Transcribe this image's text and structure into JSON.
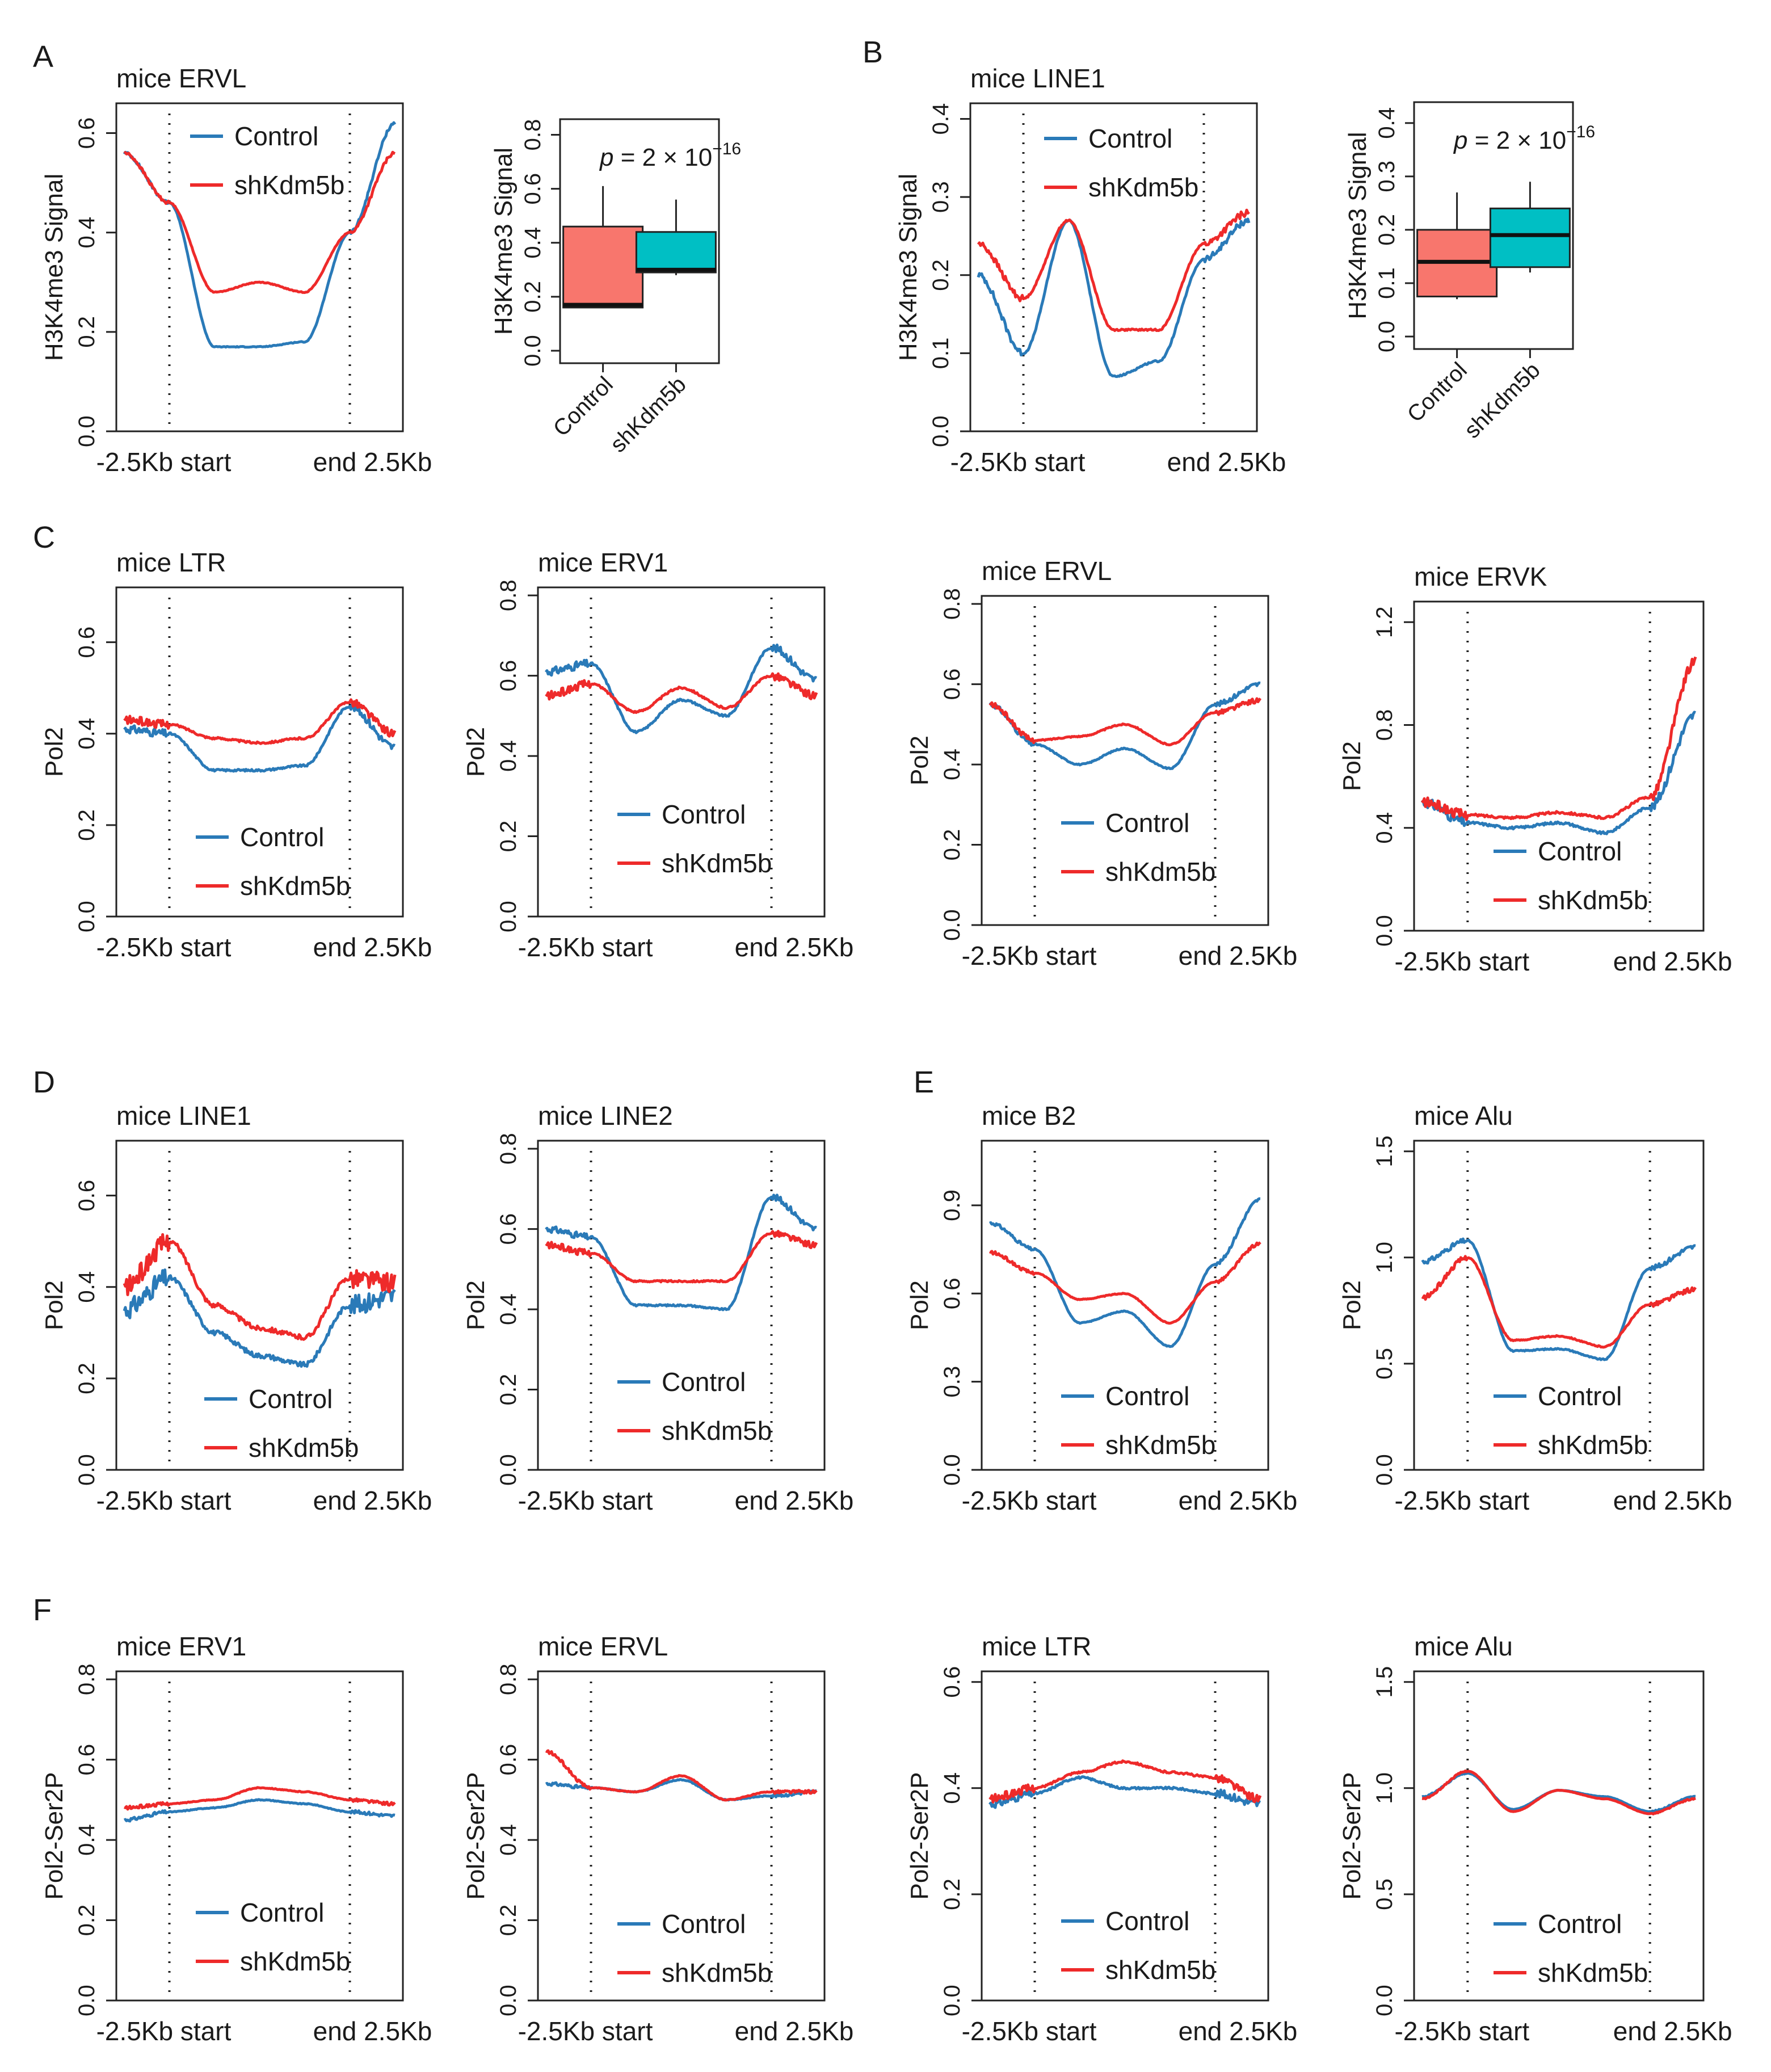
{
  "colors": {
    "control": "#2a7ab8",
    "shKdm5b": "#ee2a2a",
    "box_control": "#f8766d",
    "box_shKdm5b": "#00bfc4"
  },
  "legend": {
    "control": "Control",
    "shKdm5b": "shKdm5b"
  },
  "x_labels": {
    "start": "-2.5Kb start",
    "end": "end 2.5Kb"
  },
  "panels": {
    "A": {
      "letter": "A",
      "title": "mice ERVL",
      "ylabel": "H3K4me3 Signal",
      "yticks": [
        "0.0",
        "0.2",
        "0.4",
        "0.6"
      ],
      "ylim": [
        0,
        0.66
      ]
    },
    "A_box": {
      "ylabel": "H3K4me3 Signal",
      "yticks": [
        "0.0",
        "0.2",
        "0.4",
        "0.6",
        "0.8"
      ],
      "ylim": [
        0,
        0.82
      ],
      "pval": {
        "prefix": "p",
        "text": " = 2 × 10",
        "exp": "−16"
      },
      "categories": [
        "Control",
        "shKdm5b"
      ]
    },
    "B": {
      "letter": "B",
      "title": "mice LINE1",
      "ylabel": "H3K4me3 Signal",
      "yticks": [
        "0.0",
        "0.1",
        "0.2",
        "0.3",
        "0.4"
      ],
      "ylim": [
        0,
        0.42
      ]
    },
    "B_box": {
      "ylabel": "H3K4me3 Signal",
      "yticks": [
        "0.0",
        "0.1",
        "0.2",
        "0.3",
        "0.4"
      ],
      "ylim": [
        0,
        0.42
      ],
      "pval": {
        "prefix": "p",
        "text": " = 2 × 10",
        "exp": "−16"
      },
      "categories": [
        "Control",
        "shKdm5b"
      ]
    },
    "C1": {
      "letter": "C",
      "title": "mice LTR",
      "ylabel": "Pol2",
      "yticks": [
        "0.0",
        "0.2",
        "0.4",
        "0.6"
      ],
      "ylim": [
        0,
        0.72
      ]
    },
    "C2": {
      "title": "mice ERV1",
      "ylabel": "Pol2",
      "yticks": [
        "0.0",
        "0.2",
        "0.4",
        "0.6",
        "0.8"
      ],
      "ylim": [
        0,
        0.82
      ]
    },
    "C3": {
      "title": "mice ERVL",
      "ylabel": "Pol2",
      "yticks": [
        "0.0",
        "0.2",
        "0.4",
        "0.6",
        "0.8"
      ],
      "ylim": [
        0,
        0.82
      ]
    },
    "C4": {
      "title": "mice ERVK",
      "ylabel": "Pol2",
      "yticks": [
        "0.0",
        "0.4",
        "0.8",
        "1.2"
      ],
      "ylim": [
        0,
        1.28
      ]
    },
    "D1": {
      "letter": "D",
      "title": "mice LINE1",
      "ylabel": "Pol2",
      "yticks": [
        "0.0",
        "0.2",
        "0.4",
        "0.6"
      ],
      "ylim": [
        0,
        0.72
      ]
    },
    "D2": {
      "title": "mice LINE2",
      "ylabel": "Pol2",
      "yticks": [
        "0.0",
        "0.2",
        "0.4",
        "0.6",
        "0.8"
      ],
      "ylim": [
        0,
        0.82
      ]
    },
    "E1": {
      "letter": "E",
      "title": "mice B2",
      "ylabel": "Pol2",
      "yticks": [
        "0.0",
        "0.3",
        "0.6",
        "0.9"
      ],
      "ylim": [
        0,
        1.12
      ]
    },
    "E2": {
      "title": "mice Alu",
      "ylabel": "Pol2",
      "yticks": [
        "0.0",
        "0.5",
        "1.0",
        "1.5"
      ],
      "ylim": [
        0,
        1.55
      ]
    },
    "F1": {
      "letter": "F",
      "title": "mice ERV1",
      "ylabel": "Pol2-Ser2P",
      "yticks": [
        "0.0",
        "0.2",
        "0.4",
        "0.6",
        "0.8"
      ],
      "ylim": [
        0,
        0.82
      ]
    },
    "F2": {
      "title": "mice ERVL",
      "ylabel": "Pol2-Ser2P",
      "yticks": [
        "0.0",
        "0.2",
        "0.4",
        "0.6",
        "0.8"
      ],
      "ylim": [
        0,
        0.82
      ]
    },
    "F3": {
      "title": "mice LTR",
      "ylabel": "Pol2-Ser2P",
      "yticks": [
        "0.0",
        "0.2",
        "0.4",
        "0.6"
      ],
      "ylim": [
        0,
        0.62
      ]
    },
    "F4": {
      "title": "mice Alu",
      "ylabel": "Pol2-Ser2P",
      "yticks": [
        "0.0",
        "0.5",
        "1.0",
        "1.5"
      ],
      "ylim": [
        0,
        1.55
      ]
    }
  },
  "chart_data": [
    {
      "id": "A",
      "type": "line",
      "title": "mice ERVL",
      "ylabel": "H3K4me3 Signal",
      "ylim": [
        0,
        0.66
      ],
      "x": [
        0,
        2,
        4,
        6,
        8,
        10,
        12
      ],
      "series": [
        {
          "name": "Control",
          "values": [
            0.56,
            0.46,
            0.17,
            0.17,
            0.18,
            0.4,
            0.62
          ]
        },
        {
          "name": "shKdm5b",
          "values": [
            0.56,
            0.46,
            0.28,
            0.3,
            0.28,
            0.4,
            0.56
          ]
        }
      ]
    },
    {
      "id": "A_box",
      "type": "box",
      "ylabel": "H3K4me3 Signal",
      "ylim": [
        0,
        0.82
      ],
      "categories": [
        "Control",
        "shKdm5b"
      ],
      "series": [
        {
          "name": "Control",
          "min": 0.16,
          "q1": 0.16,
          "median": 0.17,
          "q3": 0.46,
          "max": 0.61
        },
        {
          "name": "shKdm5b",
          "min": 0.28,
          "q1": 0.29,
          "median": 0.3,
          "q3": 0.44,
          "max": 0.56
        }
      ]
    },
    {
      "id": "B",
      "type": "line",
      "title": "mice LINE1",
      "ylabel": "H3K4me3 Signal",
      "ylim": [
        0,
        0.42
      ],
      "x": [
        0,
        2,
        4,
        6,
        8,
        10,
        12
      ],
      "series": [
        {
          "name": "Control",
          "values": [
            0.2,
            0.1,
            0.27,
            0.07,
            0.09,
            0.22,
            0.27
          ]
        },
        {
          "name": "shKdm5b",
          "values": [
            0.24,
            0.17,
            0.27,
            0.13,
            0.13,
            0.24,
            0.28
          ]
        }
      ]
    },
    {
      "id": "B_box",
      "type": "box",
      "ylabel": "H3K4me3 Signal",
      "ylim": [
        0,
        0.42
      ],
      "categories": [
        "Control",
        "shKdm5b"
      ],
      "series": [
        {
          "name": "Control",
          "min": 0.07,
          "q1": 0.075,
          "median": 0.14,
          "q3": 0.2,
          "max": 0.27
        },
        {
          "name": "shKdm5b",
          "min": 0.12,
          "q1": 0.13,
          "median": 0.19,
          "q3": 0.24,
          "max": 0.29
        }
      ]
    },
    {
      "id": "C1",
      "type": "line",
      "title": "mice LTR",
      "ylabel": "Pol2",
      "ylim": [
        0,
        0.72
      ],
      "x": [
        0,
        2,
        4,
        6,
        8,
        10,
        12
      ],
      "series": [
        {
          "name": "Control",
          "values": [
            0.41,
            0.4,
            0.32,
            0.32,
            0.33,
            0.46,
            0.37
          ]
        },
        {
          "name": "shKdm5b",
          "values": [
            0.43,
            0.42,
            0.39,
            0.38,
            0.39,
            0.47,
            0.4
          ]
        }
      ]
    },
    {
      "id": "C2",
      "type": "line",
      "title": "mice ERV1",
      "ylabel": "Pol2",
      "ylim": [
        0,
        0.82
      ],
      "x": [
        0,
        2,
        4,
        6,
        8,
        10,
        12
      ],
      "series": [
        {
          "name": "Control",
          "values": [
            0.61,
            0.63,
            0.46,
            0.54,
            0.5,
            0.67,
            0.59
          ]
        },
        {
          "name": "shKdm5b",
          "values": [
            0.55,
            0.58,
            0.51,
            0.57,
            0.52,
            0.6,
            0.55
          ]
        }
      ]
    },
    {
      "id": "C3",
      "type": "line",
      "title": "mice ERVL",
      "ylabel": "Pol2",
      "ylim": [
        0,
        0.82
      ],
      "x": [
        0,
        2,
        4,
        6,
        8,
        10,
        12
      ],
      "series": [
        {
          "name": "Control",
          "values": [
            0.55,
            0.45,
            0.4,
            0.44,
            0.39,
            0.55,
            0.6
          ]
        },
        {
          "name": "shKdm5b",
          "values": [
            0.55,
            0.46,
            0.47,
            0.5,
            0.45,
            0.53,
            0.56
          ]
        }
      ]
    },
    {
      "id": "C4",
      "type": "line",
      "title": "mice ERVK",
      "ylabel": "Pol2",
      "ylim": [
        0,
        1.28
      ],
      "x": [
        0,
        2,
        4,
        6,
        8,
        10,
        12
      ],
      "series": [
        {
          "name": "Control",
          "values": [
            0.5,
            0.42,
            0.4,
            0.42,
            0.38,
            0.48,
            0.84
          ]
        },
        {
          "name": "shKdm5b",
          "values": [
            0.5,
            0.45,
            0.44,
            0.46,
            0.44,
            0.52,
            1.05
          ]
        }
      ]
    },
    {
      "id": "D1",
      "type": "line",
      "title": "mice LINE1",
      "ylabel": "Pol2",
      "ylim": [
        0,
        0.72
      ],
      "x": [
        0,
        2,
        4,
        6,
        8,
        10,
        12
      ],
      "series": [
        {
          "name": "Control",
          "values": [
            0.35,
            0.42,
            0.3,
            0.25,
            0.23,
            0.36,
            0.38
          ]
        },
        {
          "name": "shKdm5b",
          "values": [
            0.4,
            0.5,
            0.36,
            0.31,
            0.29,
            0.42,
            0.41
          ]
        }
      ]
    },
    {
      "id": "D2",
      "type": "line",
      "title": "mice LINE2",
      "ylabel": "Pol2",
      "ylim": [
        0,
        0.82
      ],
      "x": [
        0,
        2,
        4,
        6,
        8,
        10,
        12
      ],
      "series": [
        {
          "name": "Control",
          "values": [
            0.6,
            0.58,
            0.41,
            0.41,
            0.4,
            0.68,
            0.6
          ]
        },
        {
          "name": "shKdm5b",
          "values": [
            0.56,
            0.54,
            0.47,
            0.47,
            0.47,
            0.59,
            0.56
          ]
        }
      ]
    },
    {
      "id": "E1",
      "type": "line",
      "title": "mice B2",
      "ylabel": "Pol2",
      "ylim": [
        0,
        1.12
      ],
      "x": [
        0,
        2,
        4,
        6,
        8,
        10,
        12
      ],
      "series": [
        {
          "name": "Control",
          "values": [
            0.84,
            0.75,
            0.5,
            0.54,
            0.42,
            0.7,
            0.92
          ]
        },
        {
          "name": "shKdm5b",
          "values": [
            0.74,
            0.67,
            0.58,
            0.6,
            0.5,
            0.64,
            0.77
          ]
        }
      ]
    },
    {
      "id": "E2",
      "type": "line",
      "title": "mice Alu",
      "ylabel": "Pol2",
      "ylim": [
        0,
        1.55
      ],
      "x": [
        0,
        2,
        4,
        6,
        8,
        10,
        12
      ],
      "series": [
        {
          "name": "Control",
          "values": [
            0.98,
            1.08,
            0.56,
            0.57,
            0.52,
            0.95,
            1.05
          ]
        },
        {
          "name": "shKdm5b",
          "values": [
            0.81,
            1.0,
            0.61,
            0.63,
            0.58,
            0.78,
            0.85
          ]
        }
      ]
    },
    {
      "id": "F1",
      "type": "line",
      "title": "mice ERV1",
      "ylabel": "Pol2-Ser2P",
      "ylim": [
        0,
        0.82
      ],
      "x": [
        0,
        2,
        4,
        6,
        8,
        10,
        12
      ],
      "series": [
        {
          "name": "Control",
          "values": [
            0.45,
            0.47,
            0.48,
            0.5,
            0.49,
            0.47,
            0.46
          ]
        },
        {
          "name": "shKdm5b",
          "values": [
            0.48,
            0.49,
            0.5,
            0.53,
            0.52,
            0.5,
            0.49
          ]
        }
      ]
    },
    {
      "id": "F2",
      "type": "line",
      "title": "mice ERVL",
      "ylabel": "Pol2-Ser2P",
      "ylim": [
        0,
        0.82
      ],
      "x": [
        0,
        2,
        4,
        6,
        8,
        10,
        12
      ],
      "series": [
        {
          "name": "Control",
          "values": [
            0.54,
            0.53,
            0.52,
            0.55,
            0.5,
            0.51,
            0.52
          ]
        },
        {
          "name": "shKdm5b",
          "values": [
            0.62,
            0.53,
            0.52,
            0.56,
            0.5,
            0.52,
            0.52
          ]
        }
      ]
    },
    {
      "id": "F3",
      "type": "line",
      "title": "mice LTR",
      "ylabel": "Pol2-Ser2P",
      "ylim": [
        0,
        0.62
      ],
      "x": [
        0,
        2,
        4,
        6,
        8,
        10,
        12
      ],
      "series": [
        {
          "name": "Control",
          "values": [
            0.37,
            0.39,
            0.42,
            0.4,
            0.4,
            0.39,
            0.37
          ]
        },
        {
          "name": "shKdm5b",
          "values": [
            0.38,
            0.4,
            0.43,
            0.45,
            0.43,
            0.42,
            0.38
          ]
        }
      ]
    },
    {
      "id": "F4",
      "type": "line",
      "title": "mice Alu",
      "ylabel": "Pol2-Ser2P",
      "ylim": [
        0,
        1.55
      ],
      "x": [
        0,
        2,
        4,
        6,
        8,
        10,
        12
      ],
      "series": [
        {
          "name": "Control",
          "values": [
            0.96,
            1.07,
            0.9,
            0.99,
            0.96,
            0.89,
            0.96
          ]
        },
        {
          "name": "shKdm5b",
          "values": [
            0.95,
            1.08,
            0.89,
            0.99,
            0.95,
            0.88,
            0.95
          ]
        }
      ]
    }
  ]
}
